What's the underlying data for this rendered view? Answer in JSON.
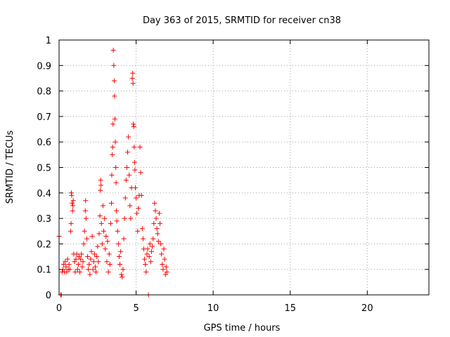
{
  "chart_data": {
    "type": "scatter",
    "title": "Day 363 of 2015, SRMTID for receiver cn38",
    "xlabel": "GPS time / hours",
    "ylabel": "SRMTID / TECUs",
    "xlim": [
      0,
      24
    ],
    "ylim": [
      0,
      1
    ],
    "grid": true,
    "marker": "+",
    "color": "#ff0000",
    "x_ticks": [
      {
        "value": 0,
        "label": "0"
      },
      {
        "value": 5,
        "label": "5"
      },
      {
        "value": 10,
        "label": "10"
      },
      {
        "value": 15,
        "label": "15"
      },
      {
        "value": 20,
        "label": "20"
      }
    ],
    "y_ticks": [
      {
        "value": 0,
        "label": "0"
      },
      {
        "value": 0.1,
        "label": "0.1"
      },
      {
        "value": 0.2,
        "label": "0.2"
      },
      {
        "value": 0.3,
        "label": "0.3"
      },
      {
        "value": 0.4,
        "label": "0.4"
      },
      {
        "value": 0.5,
        "label": "0.5"
      },
      {
        "value": 0.6,
        "label": "0.6"
      },
      {
        "value": 0.7,
        "label": "0.7"
      },
      {
        "value": 0.8,
        "label": "0.8"
      },
      {
        "value": 0.9,
        "label": "0.9"
      },
      {
        "value": 1,
        "label": "1"
      }
    ],
    "points": [
      [
        0.0,
        0.23
      ],
      [
        0.1,
        0.0
      ],
      [
        0.15,
        0.0
      ],
      [
        0.2,
        0.09
      ],
      [
        0.25,
        0.1
      ],
      [
        0.3,
        0.12
      ],
      [
        0.35,
        0.09
      ],
      [
        0.4,
        0.13
      ],
      [
        0.45,
        0.11
      ],
      [
        0.5,
        0.09
      ],
      [
        0.55,
        0.14
      ],
      [
        0.6,
        0.1
      ],
      [
        0.65,
        0.12
      ],
      [
        0.7,
        0.1
      ],
      [
        0.75,
        0.25
      ],
      [
        0.78,
        0.28
      ],
      [
        0.8,
        0.4
      ],
      [
        0.82,
        0.39
      ],
      [
        0.85,
        0.36
      ],
      [
        0.88,
        0.33
      ],
      [
        0.9,
        0.35
      ],
      [
        0.92,
        0.37
      ],
      [
        0.95,
        0.16
      ],
      [
        1.0,
        0.13
      ],
      [
        1.05,
        0.09
      ],
      [
        1.1,
        0.14
      ],
      [
        1.15,
        0.16
      ],
      [
        1.2,
        0.1
      ],
      [
        1.25,
        0.12
      ],
      [
        1.3,
        0.15
      ],
      [
        1.35,
        0.09
      ],
      [
        1.4,
        0.14
      ],
      [
        1.45,
        0.16
      ],
      [
        1.5,
        0.11
      ],
      [
        1.55,
        0.13
      ],
      [
        1.6,
        0.2
      ],
      [
        1.65,
        0.25
      ],
      [
        1.7,
        0.33
      ],
      [
        1.72,
        0.37
      ],
      [
        1.75,
        0.3
      ],
      [
        1.8,
        0.22
      ],
      [
        1.85,
        0.15
      ],
      [
        1.9,
        0.1
      ],
      [
        1.95,
        0.12
      ],
      [
        2.0,
        0.08
      ],
      [
        2.05,
        0.14
      ],
      [
        2.1,
        0.17
      ],
      [
        2.15,
        0.23
      ],
      [
        2.2,
        0.1
      ],
      [
        2.25,
        0.13
      ],
      [
        2.3,
        0.16
      ],
      [
        2.35,
        0.11
      ],
      [
        2.4,
        0.09
      ],
      [
        2.45,
        0.15
      ],
      [
        2.5,
        0.19
      ],
      [
        2.55,
        0.13
      ],
      [
        2.6,
        0.24
      ],
      [
        2.65,
        0.31
      ],
      [
        2.68,
        0.41
      ],
      [
        2.7,
        0.45
      ],
      [
        2.72,
        0.43
      ],
      [
        2.75,
        0.28
      ],
      [
        2.8,
        0.2
      ],
      [
        2.85,
        0.35
      ],
      [
        2.9,
        0.25
      ],
      [
        2.95,
        0.3
      ],
      [
        3.0,
        0.18
      ],
      [
        3.05,
        0.23
      ],
      [
        3.1,
        0.13
      ],
      [
        3.15,
        0.21
      ],
      [
        3.2,
        0.09
      ],
      [
        3.25,
        0.16
      ],
      [
        3.3,
        0.12
      ],
      [
        3.35,
        0.28
      ],
      [
        3.4,
        0.36
      ],
      [
        3.42,
        0.47
      ],
      [
        3.45,
        0.55
      ],
      [
        3.48,
        0.58
      ],
      [
        3.5,
        0.67
      ],
      [
        3.52,
        0.96
      ],
      [
        3.55,
        0.9
      ],
      [
        3.58,
        0.84
      ],
      [
        3.6,
        0.78
      ],
      [
        3.62,
        0.69
      ],
      [
        3.65,
        0.6
      ],
      [
        3.68,
        0.5
      ],
      [
        3.7,
        0.44
      ],
      [
        3.72,
        0.33
      ],
      [
        3.75,
        0.29
      ],
      [
        3.8,
        0.25
      ],
      [
        3.85,
        0.2
      ],
      [
        3.9,
        0.15
      ],
      [
        3.95,
        0.12
      ],
      [
        4.0,
        0.17
      ],
      [
        4.05,
        0.08
      ],
      [
        4.1,
        0.07
      ],
      [
        4.15,
        0.1
      ],
      [
        4.2,
        0.22
      ],
      [
        4.25,
        0.3
      ],
      [
        4.3,
        0.38
      ],
      [
        4.35,
        0.45
      ],
      [
        4.4,
        0.5
      ],
      [
        4.45,
        0.56
      ],
      [
        4.5,
        0.62
      ],
      [
        4.55,
        0.47
      ],
      [
        4.6,
        0.35
      ],
      [
        4.65,
        0.3
      ],
      [
        4.7,
        0.42
      ],
      [
        4.75,
        0.85
      ],
      [
        4.78,
        0.87
      ],
      [
        4.8,
        0.83
      ],
      [
        4.82,
        0.67
      ],
      [
        4.85,
        0.66
      ],
      [
        4.88,
        0.58
      ],
      [
        4.9,
        0.52
      ],
      [
        4.92,
        0.49
      ],
      [
        4.95,
        0.42
      ],
      [
        5.0,
        0.38
      ],
      [
        5.05,
        0.32
      ],
      [
        5.1,
        0.25
      ],
      [
        5.15,
        0.34
      ],
      [
        5.2,
        0.39
      ],
      [
        5.25,
        0.58
      ],
      [
        5.3,
        0.48
      ],
      [
        5.35,
        0.39
      ],
      [
        5.4,
        0.26
      ],
      [
        5.45,
        0.22
      ],
      [
        5.5,
        0.18
      ],
      [
        5.55,
        0.14
      ],
      [
        5.6,
        0.12
      ],
      [
        5.65,
        0.09
      ],
      [
        5.7,
        0.16
      ],
      [
        5.75,
        0.18
      ],
      [
        5.8,
        0.0
      ],
      [
        5.85,
        0.15
      ],
      [
        5.9,
        0.2
      ],
      [
        5.95,
        0.13
      ],
      [
        6.0,
        0.17
      ],
      [
        6.05,
        0.19
      ],
      [
        6.1,
        0.22
      ],
      [
        6.15,
        0.28
      ],
      [
        6.2,
        0.36
      ],
      [
        6.25,
        0.33
      ],
      [
        6.3,
        0.3
      ],
      [
        6.35,
        0.26
      ],
      [
        6.4,
        0.24
      ],
      [
        6.45,
        0.21
      ],
      [
        6.5,
        0.32
      ],
      [
        6.55,
        0.28
      ],
      [
        6.6,
        0.2
      ],
      [
        6.65,
        0.16
      ],
      [
        6.7,
        0.12
      ],
      [
        6.75,
        0.1
      ],
      [
        6.8,
        0.18
      ],
      [
        6.85,
        0.14
      ],
      [
        6.9,
        0.08
      ],
      [
        6.95,
        0.11
      ],
      [
        7.0,
        0.09
      ]
    ]
  }
}
